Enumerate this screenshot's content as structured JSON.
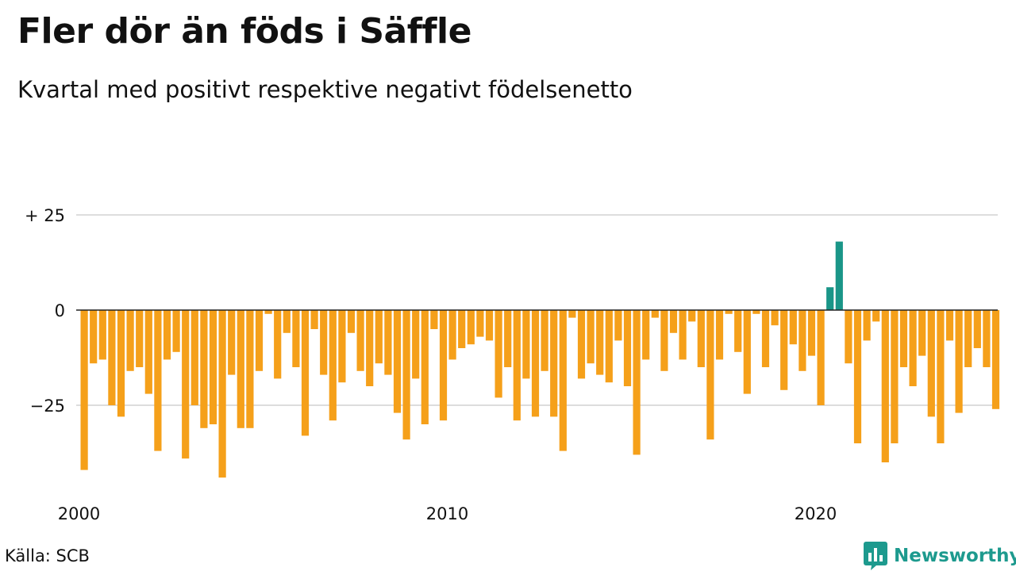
{
  "title": "Fler dör än föds i Säffle",
  "subtitle": "Kvartal med positivt respektive negativt födelsenetto",
  "source": "Källa: SCB",
  "brand": "Newsworthy",
  "colors": {
    "negative": "#f5a01a",
    "positive": "#1a9688",
    "grid": "#dddddd",
    "brand": "#1d9a8e"
  },
  "chart_data": {
    "type": "bar",
    "x_start": "2000 Q1",
    "frequency": "quarterly",
    "ylim": [
      -43,
      25
    ],
    "yticks": [
      {
        "value": 25,
        "label": "+ 25"
      },
      {
        "value": 0,
        "label": "0"
      },
      {
        "value": -25,
        "label": "−25"
      }
    ],
    "xticks": [
      {
        "index": 0,
        "label": "2000"
      },
      {
        "index": 40,
        "label": "2010"
      },
      {
        "index": 80,
        "label": "2020"
      }
    ],
    "values": [
      -42,
      -14,
      -13,
      -25,
      -28,
      -16,
      -15,
      -22,
      -37,
      -13,
      -11,
      -39,
      -25,
      -31,
      -30,
      -44,
      -17,
      -31,
      -31,
      -16,
      -1,
      -18,
      -6,
      -15,
      -33,
      -5,
      -17,
      -29,
      -19,
      -6,
      -16,
      -20,
      -14,
      -17,
      -27,
      -34,
      -18,
      -30,
      -5,
      -29,
      -13,
      -10,
      -9,
      -7,
      -8,
      -23,
      -15,
      -29,
      -18,
      -28,
      -16,
      -28,
      -37,
      -2,
      -18,
      -14,
      -17,
      -19,
      -8,
      -20,
      -38,
      -13,
      -2,
      -16,
      -6,
      -13,
      -3,
      -15,
      -34,
      -13,
      -1,
      -11,
      -22,
      -1,
      -15,
      -4,
      -21,
      -9,
      -16,
      -12,
      -25,
      6,
      18,
      -14,
      -35,
      -8,
      -3,
      -40,
      -35,
      -15,
      -20,
      -12,
      -28,
      -35,
      -8,
      -27,
      -15,
      -10,
      -15,
      -26
    ]
  }
}
